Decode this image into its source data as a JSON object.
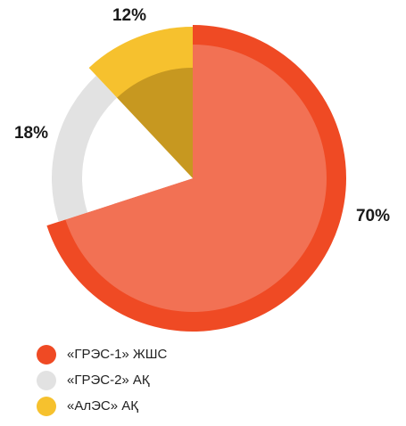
{
  "chart_data": {
    "type": "pie",
    "categories": [
      "«ГРЭС-1» ЖШС",
      "«ГРЭС-2» АҚ",
      "«АлЭС» АҚ"
    ],
    "values": [
      70,
      18,
      12
    ],
    "value_labels": [
      "70%",
      "18%",
      "12%"
    ],
    "colors": [
      "#ef4a24",
      "#e2e2e2",
      "#f6c12e"
    ],
    "legend": "bottom-left"
  }
}
